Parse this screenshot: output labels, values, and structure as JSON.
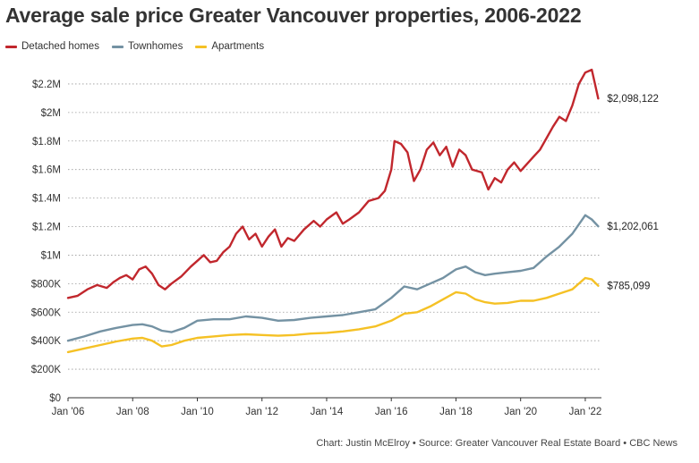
{
  "chart_data": {
    "type": "line",
    "title": "Average sale price Greater Vancouver properties, 2006-2022",
    "xlabel": "",
    "ylabel": "",
    "xlim": [
      2006.0,
      2022.5
    ],
    "ylim": [
      0,
      2300000
    ],
    "grid": true,
    "legend_position": "top-left",
    "y_ticks": [
      {
        "value": 0,
        "label": "$0"
      },
      {
        "value": 200000,
        "label": "$200K"
      },
      {
        "value": 400000,
        "label": "$400K"
      },
      {
        "value": 600000,
        "label": "$600K"
      },
      {
        "value": 800000,
        "label": "$800K"
      },
      {
        "value": 1000000,
        "label": "$1M"
      },
      {
        "value": 1200000,
        "label": "$1.2M"
      },
      {
        "value": 1400000,
        "label": "$1.4M"
      },
      {
        "value": 1600000,
        "label": "$1.6M"
      },
      {
        "value": 1800000,
        "label": "$1.8M"
      },
      {
        "value": 2000000,
        "label": "$2M"
      },
      {
        "value": 2200000,
        "label": "$2.2M"
      }
    ],
    "x_ticks": [
      {
        "value": 2006,
        "label": "Jan '06"
      },
      {
        "value": 2008,
        "label": "Jan '08"
      },
      {
        "value": 2010,
        "label": "Jan '10"
      },
      {
        "value": 2012,
        "label": "Jan '12"
      },
      {
        "value": 2014,
        "label": "Jan '14"
      },
      {
        "value": 2016,
        "label": "Jan '16"
      },
      {
        "value": 2018,
        "label": "Jan '18"
      },
      {
        "value": 2020,
        "label": "Jan '20"
      },
      {
        "value": 2022,
        "label": "Jan '22"
      }
    ],
    "series": [
      {
        "name": "Detached homes",
        "color": "#c1272d",
        "end_label": "$2,098,122",
        "points": [
          [
            2006.0,
            700000
          ],
          [
            2006.3,
            715000
          ],
          [
            2006.6,
            760000
          ],
          [
            2006.9,
            790000
          ],
          [
            2007.2,
            770000
          ],
          [
            2007.4,
            810000
          ],
          [
            2007.6,
            840000
          ],
          [
            2007.8,
            860000
          ],
          [
            2008.0,
            830000
          ],
          [
            2008.2,
            900000
          ],
          [
            2008.4,
            920000
          ],
          [
            2008.6,
            870000
          ],
          [
            2008.8,
            790000
          ],
          [
            2009.0,
            760000
          ],
          [
            2009.2,
            800000
          ],
          [
            2009.5,
            850000
          ],
          [
            2009.8,
            920000
          ],
          [
            2010.0,
            960000
          ],
          [
            2010.2,
            1000000
          ],
          [
            2010.4,
            950000
          ],
          [
            2010.6,
            960000
          ],
          [
            2010.8,
            1020000
          ],
          [
            2011.0,
            1060000
          ],
          [
            2011.2,
            1150000
          ],
          [
            2011.4,
            1200000
          ],
          [
            2011.6,
            1110000
          ],
          [
            2011.8,
            1150000
          ],
          [
            2012.0,
            1060000
          ],
          [
            2012.2,
            1130000
          ],
          [
            2012.4,
            1180000
          ],
          [
            2012.6,
            1060000
          ],
          [
            2012.8,
            1120000
          ],
          [
            2013.0,
            1100000
          ],
          [
            2013.3,
            1180000
          ],
          [
            2013.6,
            1240000
          ],
          [
            2013.8,
            1200000
          ],
          [
            2014.0,
            1250000
          ],
          [
            2014.3,
            1300000
          ],
          [
            2014.5,
            1220000
          ],
          [
            2014.7,
            1250000
          ],
          [
            2015.0,
            1300000
          ],
          [
            2015.3,
            1380000
          ],
          [
            2015.6,
            1400000
          ],
          [
            2015.8,
            1450000
          ],
          [
            2016.0,
            1600000
          ],
          [
            2016.1,
            1800000
          ],
          [
            2016.3,
            1780000
          ],
          [
            2016.5,
            1720000
          ],
          [
            2016.7,
            1520000
          ],
          [
            2016.9,
            1600000
          ],
          [
            2017.1,
            1740000
          ],
          [
            2017.3,
            1790000
          ],
          [
            2017.5,
            1700000
          ],
          [
            2017.7,
            1760000
          ],
          [
            2017.9,
            1620000
          ],
          [
            2018.1,
            1740000
          ],
          [
            2018.3,
            1700000
          ],
          [
            2018.5,
            1600000
          ],
          [
            2018.8,
            1580000
          ],
          [
            2019.0,
            1460000
          ],
          [
            2019.2,
            1540000
          ],
          [
            2019.4,
            1510000
          ],
          [
            2019.6,
            1600000
          ],
          [
            2019.8,
            1650000
          ],
          [
            2020.0,
            1590000
          ],
          [
            2020.2,
            1640000
          ],
          [
            2020.4,
            1690000
          ],
          [
            2020.6,
            1740000
          ],
          [
            2020.8,
            1820000
          ],
          [
            2021.0,
            1900000
          ],
          [
            2021.2,
            1970000
          ],
          [
            2021.4,
            1940000
          ],
          [
            2021.6,
            2050000
          ],
          [
            2021.8,
            2200000
          ],
          [
            2022.0,
            2280000
          ],
          [
            2022.2,
            2300000
          ],
          [
            2022.3,
            2200000
          ],
          [
            2022.4,
            2098122
          ]
        ]
      },
      {
        "name": "Townhomes",
        "color": "#7492a3",
        "end_label": "$1,202,061",
        "points": [
          [
            2006.0,
            400000
          ],
          [
            2006.5,
            430000
          ],
          [
            2007.0,
            465000
          ],
          [
            2007.5,
            490000
          ],
          [
            2008.0,
            510000
          ],
          [
            2008.3,
            515000
          ],
          [
            2008.6,
            500000
          ],
          [
            2008.9,
            470000
          ],
          [
            2009.2,
            460000
          ],
          [
            2009.6,
            490000
          ],
          [
            2010.0,
            540000
          ],
          [
            2010.5,
            550000
          ],
          [
            2011.0,
            550000
          ],
          [
            2011.5,
            570000
          ],
          [
            2012.0,
            560000
          ],
          [
            2012.5,
            540000
          ],
          [
            2013.0,
            545000
          ],
          [
            2013.5,
            560000
          ],
          [
            2014.0,
            570000
          ],
          [
            2014.5,
            580000
          ],
          [
            2015.0,
            600000
          ],
          [
            2015.5,
            620000
          ],
          [
            2016.0,
            700000
          ],
          [
            2016.4,
            780000
          ],
          [
            2016.8,
            760000
          ],
          [
            2017.2,
            800000
          ],
          [
            2017.6,
            840000
          ],
          [
            2018.0,
            900000
          ],
          [
            2018.3,
            920000
          ],
          [
            2018.6,
            880000
          ],
          [
            2018.9,
            860000
          ],
          [
            2019.2,
            870000
          ],
          [
            2019.6,
            880000
          ],
          [
            2020.0,
            890000
          ],
          [
            2020.4,
            910000
          ],
          [
            2020.8,
            990000
          ],
          [
            2021.2,
            1060000
          ],
          [
            2021.6,
            1150000
          ],
          [
            2022.0,
            1280000
          ],
          [
            2022.2,
            1250000
          ],
          [
            2022.4,
            1202061
          ]
        ]
      },
      {
        "name": "Apartments",
        "color": "#f5c125",
        "end_label": "$785,099",
        "points": [
          [
            2006.0,
            320000
          ],
          [
            2006.5,
            345000
          ],
          [
            2007.0,
            370000
          ],
          [
            2007.5,
            395000
          ],
          [
            2008.0,
            415000
          ],
          [
            2008.3,
            420000
          ],
          [
            2008.6,
            400000
          ],
          [
            2008.9,
            360000
          ],
          [
            2009.2,
            370000
          ],
          [
            2009.6,
            400000
          ],
          [
            2010.0,
            420000
          ],
          [
            2010.5,
            430000
          ],
          [
            2011.0,
            440000
          ],
          [
            2011.5,
            445000
          ],
          [
            2012.0,
            440000
          ],
          [
            2012.5,
            435000
          ],
          [
            2013.0,
            440000
          ],
          [
            2013.5,
            450000
          ],
          [
            2014.0,
            455000
          ],
          [
            2014.5,
            465000
          ],
          [
            2015.0,
            480000
          ],
          [
            2015.5,
            500000
          ],
          [
            2016.0,
            540000
          ],
          [
            2016.4,
            590000
          ],
          [
            2016.8,
            600000
          ],
          [
            2017.2,
            640000
          ],
          [
            2017.6,
            690000
          ],
          [
            2018.0,
            740000
          ],
          [
            2018.3,
            730000
          ],
          [
            2018.6,
            690000
          ],
          [
            2018.9,
            670000
          ],
          [
            2019.2,
            660000
          ],
          [
            2019.6,
            665000
          ],
          [
            2020.0,
            680000
          ],
          [
            2020.4,
            680000
          ],
          [
            2020.8,
            700000
          ],
          [
            2021.2,
            730000
          ],
          [
            2021.6,
            760000
          ],
          [
            2022.0,
            840000
          ],
          [
            2022.2,
            830000
          ],
          [
            2022.4,
            785099
          ]
        ]
      }
    ]
  },
  "credit": "Chart: Justin McElroy • Source: Greater Vancouver Real Estate Board • CBC News"
}
